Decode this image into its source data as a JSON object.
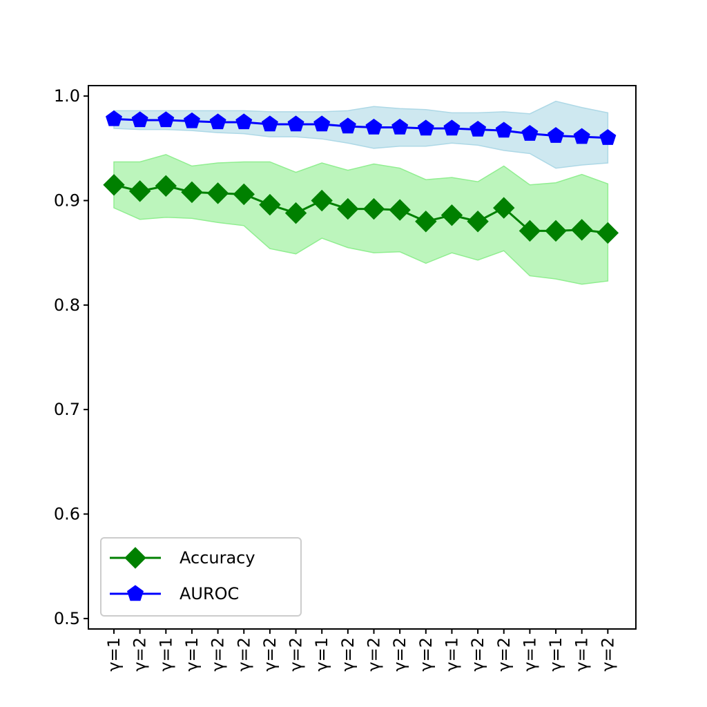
{
  "chart_data": {
    "type": "line",
    "title": "",
    "xlabel": "",
    "ylabel": "",
    "categories": [
      "γ=1",
      "γ=2",
      "γ=1",
      "γ=1",
      "γ=2",
      "γ=2",
      "γ=2",
      "γ=2",
      "γ=1",
      "γ=2",
      "γ=2",
      "γ=2",
      "γ=2",
      "γ=1",
      "γ=2",
      "γ=2",
      "γ=1",
      "γ=1",
      "γ=1",
      "γ=2"
    ],
    "ylim": [
      0.49,
      1.01
    ],
    "yticks": [
      0.5,
      0.6,
      0.7,
      0.8,
      0.9,
      1.0
    ],
    "ytick_labels": [
      "0.5",
      "0.6",
      "0.7",
      "0.8",
      "0.9",
      "1.0"
    ],
    "grid": false,
    "legend_position": "lower-left",
    "series": [
      {
        "name": "Accuracy",
        "color": "#008000",
        "band_color": "#90EE90",
        "marker": "diamond",
        "values": [
          0.915,
          0.909,
          0.914,
          0.908,
          0.907,
          0.906,
          0.896,
          0.888,
          0.9,
          0.892,
          0.892,
          0.891,
          0.88,
          0.886,
          0.88,
          0.893,
          0.871,
          0.871,
          0.872,
          0.869
        ],
        "upper": [
          0.937,
          0.937,
          0.944,
          0.933,
          0.936,
          0.937,
          0.937,
          0.927,
          0.936,
          0.929,
          0.935,
          0.931,
          0.92,
          0.922,
          0.918,
          0.933,
          0.915,
          0.917,
          0.925,
          0.916
        ],
        "lower": [
          0.893,
          0.882,
          0.884,
          0.883,
          0.879,
          0.876,
          0.854,
          0.849,
          0.864,
          0.855,
          0.85,
          0.851,
          0.84,
          0.85,
          0.843,
          0.852,
          0.828,
          0.825,
          0.82,
          0.823
        ]
      },
      {
        "name": "AUROC",
        "color": "#0000ff",
        "band_color": "#ADD8E6",
        "marker": "pentagon",
        "values": [
          0.978,
          0.977,
          0.977,
          0.976,
          0.975,
          0.975,
          0.973,
          0.973,
          0.973,
          0.971,
          0.97,
          0.97,
          0.969,
          0.969,
          0.968,
          0.967,
          0.964,
          0.962,
          0.961,
          0.96
        ],
        "upper": [
          0.986,
          0.986,
          0.986,
          0.986,
          0.986,
          0.986,
          0.985,
          0.985,
          0.985,
          0.986,
          0.99,
          0.988,
          0.987,
          0.984,
          0.984,
          0.985,
          0.983,
          0.995,
          0.989,
          0.984
        ],
        "lower": [
          0.969,
          0.968,
          0.968,
          0.967,
          0.965,
          0.964,
          0.961,
          0.961,
          0.959,
          0.955,
          0.95,
          0.952,
          0.952,
          0.955,
          0.953,
          0.948,
          0.945,
          0.931,
          0.934,
          0.936
        ]
      }
    ]
  }
}
